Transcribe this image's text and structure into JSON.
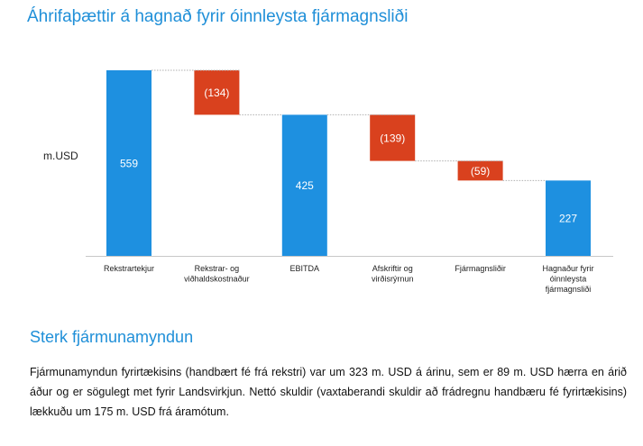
{
  "chart_data": {
    "type": "waterfall",
    "title": "Áhrifaþættir á hagnað fyrir óinnleysta fjármagnsliði",
    "ylabel": "m.USD",
    "categories": [
      [
        "Rekstrartekjur"
      ],
      [
        "Rekstrar- og",
        "viðhaldskostnaður"
      ],
      [
        "EBITDA"
      ],
      [
        "Afskriftir og",
        "virðisrýrnun"
      ],
      [
        "Fjármagnsliðir"
      ],
      [
        "Hagnaður fyrir",
        "óinnleysta",
        "fjármagnsliði"
      ]
    ],
    "values": [
      559,
      -134,
      425,
      -139,
      -59,
      227
    ],
    "bar_kind": [
      "total",
      "delta",
      "total",
      "delta",
      "delta",
      "total"
    ],
    "labels": [
      "559",
      "(134)",
      "425",
      "(139)",
      "(59)",
      "227"
    ],
    "ylim": [
      0,
      559
    ],
    "colors": {
      "total": "#1e90e0",
      "decrease": "#d9411e"
    }
  },
  "section": {
    "heading": "Sterk fjármunamyndun",
    "paragraph": "Fjármunamyndun fyrirtækisins (handbært fé frá rekstri) var um 323 m. USD á árinu, sem er 89 m. USD hærra en árið áður og er sögulegt met fyrir Landsvirkjun. Nettó skuldir (vaxtaberandi skuldir að frádregnu handbæru fé fyrirtækisins) lækkuðu um 175 m. USD frá áramótum."
  }
}
